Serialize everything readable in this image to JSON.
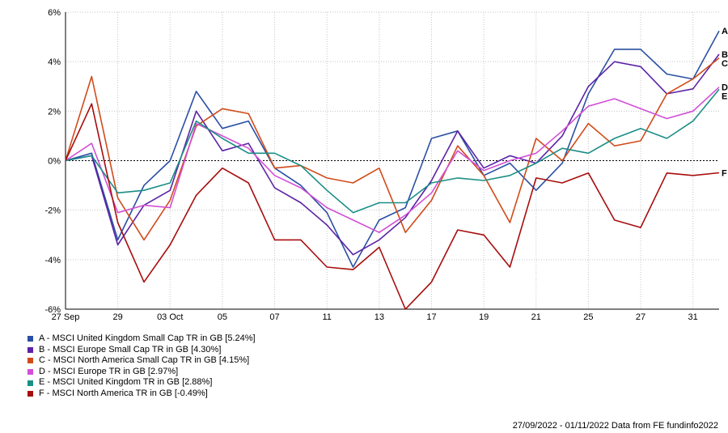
{
  "footer": {
    "date_range": "27/09/2022 - 01/11/2022",
    "source": "Data from FE fundinfo2022"
  },
  "chart_data": {
    "type": "line",
    "x": [
      "2022-09-27",
      "2022-09-28",
      "2022-09-29",
      "2022-09-30",
      "2022-10-03",
      "2022-10-04",
      "2022-10-05",
      "2022-10-06",
      "2022-10-07",
      "2022-10-10",
      "2022-10-11",
      "2022-10-12",
      "2022-10-13",
      "2022-10-14",
      "2022-10-17",
      "2022-10-18",
      "2022-10-19",
      "2022-10-20",
      "2022-10-21",
      "2022-10-24",
      "2022-10-25",
      "2022-10-26",
      "2022-10-27",
      "2022-10-28",
      "2022-10-31",
      "2022-11-01"
    ],
    "xticks": [
      "27 Sep",
      "29",
      "03 Oct",
      "05",
      "07",
      "11",
      "13",
      "17",
      "19",
      "21",
      "25",
      "27",
      "31"
    ],
    "xtick_index": [
      0,
      2,
      4,
      6,
      8,
      10,
      12,
      14,
      16,
      18,
      20,
      22,
      24
    ],
    "yticks": [
      "6%",
      "4%",
      "2%",
      "0%",
      "-2%",
      "-4%",
      "-6%"
    ],
    "ylim": [
      -6,
      6
    ],
    "unit": "%",
    "grid": true,
    "legend_position": "bottom-left",
    "series": [
      {
        "label": "A",
        "name": "A - MSCI United Kingdom Small Cap TR in GB [5.24%]",
        "color": "#2a4fa3",
        "values": [
          0,
          0.3,
          -3.2,
          -1.0,
          0.0,
          2.8,
          1.3,
          1.6,
          -0.3,
          -1.0,
          -2.1,
          -4.3,
          -2.4,
          -1.9,
          0.9,
          1.2,
          -0.6,
          -0.1,
          -1.2,
          -0.1,
          2.7,
          4.5,
          4.5,
          3.5,
          3.3,
          5.24
        ]
      },
      {
        "label": "B",
        "name": "B - MSCI Europe Small Cap TR in GB [4.30%]",
        "color": "#5b23a6",
        "values": [
          0,
          0.2,
          -3.4,
          -1.8,
          -1.2,
          2.0,
          0.4,
          0.7,
          -1.1,
          -1.7,
          -2.6,
          -3.8,
          -3.2,
          -2.3,
          -0.8,
          1.2,
          -0.3,
          0.2,
          -0.1,
          1.0,
          3.0,
          4.0,
          3.8,
          2.7,
          2.9,
          4.3
        ]
      },
      {
        "label": "C",
        "name": "C - MSCI North America Small Cap TR in GB [4.15%]",
        "color": "#d14b1a",
        "values": [
          0,
          3.4,
          -1.5,
          -3.2,
          -1.6,
          1.4,
          2.1,
          1.9,
          -0.3,
          -0.2,
          -0.7,
          -0.9,
          -0.3,
          -2.9,
          -1.6,
          0.6,
          -0.6,
          -2.5,
          0.9,
          0.0,
          1.5,
          0.6,
          0.8,
          2.7,
          3.3,
          4.15
        ]
      },
      {
        "label": "D",
        "name": "D - MSCI Europe TR in GB [2.97%]",
        "color": "#d24fd6",
        "values": [
          0,
          0.7,
          -2.1,
          -1.8,
          -1.9,
          1.5,
          1.0,
          0.5,
          -0.6,
          -1.1,
          -1.9,
          -2.4,
          -2.9,
          -2.2,
          -1.3,
          0.4,
          -0.4,
          0.0,
          0.3,
          1.2,
          2.2,
          2.5,
          2.1,
          1.7,
          2.0,
          2.97
        ]
      },
      {
        "label": "E",
        "name": "E - MSCI United Kingdom TR in GB [2.88%]",
        "color": "#1a8f86",
        "values": [
          0,
          0.2,
          -1.3,
          -1.2,
          -0.9,
          1.6,
          0.9,
          0.3,
          0.3,
          -0.2,
          -1.2,
          -2.1,
          -1.7,
          -1.7,
          -0.9,
          -0.7,
          -0.8,
          -0.6,
          -0.1,
          0.5,
          0.3,
          0.9,
          1.3,
          0.9,
          1.6,
          2.88
        ]
      },
      {
        "label": "F",
        "name": "F - MSCI North America TR in GB [-0.49%]",
        "color": "#a80d0d",
        "values": [
          0,
          2.3,
          -2.5,
          -4.9,
          -3.4,
          -1.4,
          -0.3,
          -0.9,
          -3.2,
          -3.2,
          -4.3,
          -4.4,
          -3.5,
          -6.0,
          -4.9,
          -2.8,
          -3.0,
          -4.3,
          -0.7,
          -0.9,
          -0.5,
          -2.4,
          -2.7,
          -0.5,
          -0.6,
          -0.49
        ]
      }
    ]
  }
}
